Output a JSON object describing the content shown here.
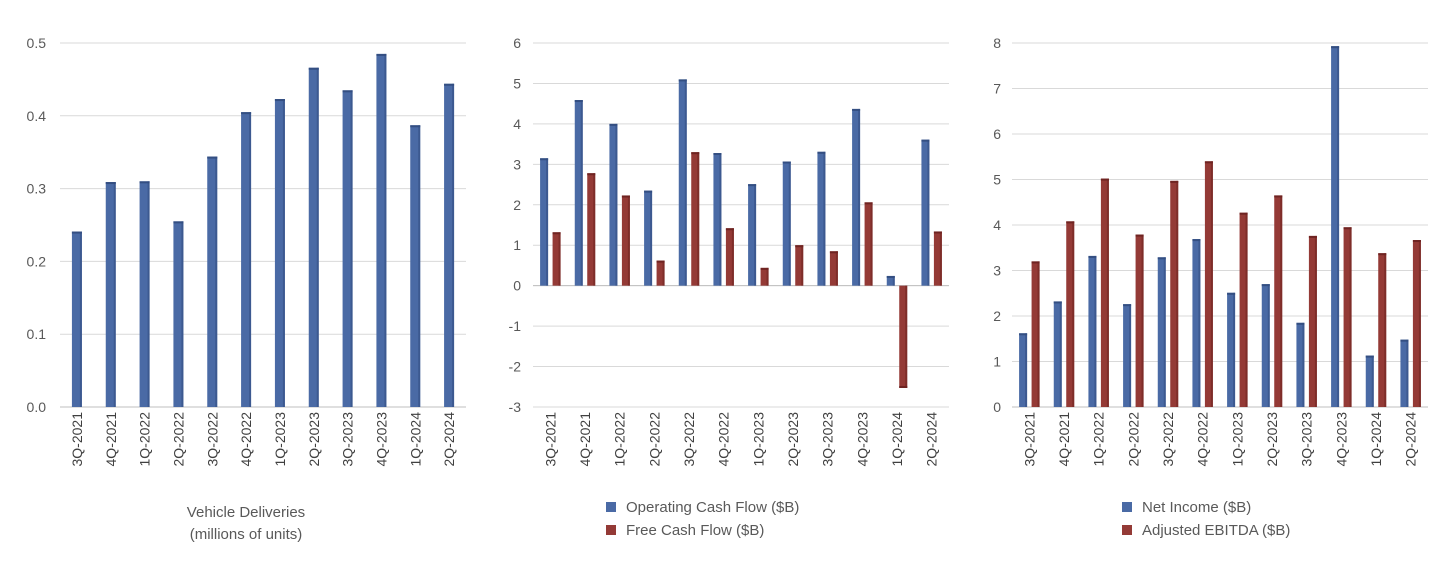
{
  "colors": {
    "blue": "#4a6aa5",
    "blue_dark": "#344f82",
    "red": "#943a36",
    "red_dark": "#6f2422",
    "grid": "#d9d9d9",
    "text": "#595959"
  },
  "chart_data": [
    {
      "type": "bar",
      "categories": [
        "3Q-2021",
        "4Q-2021",
        "1Q-2022",
        "2Q-2022",
        "3Q-2022",
        "4Q-2022",
        "1Q-2023",
        "2Q-2023",
        "3Q-2023",
        "4Q-2023",
        "1Q-2024",
        "2Q-2024"
      ],
      "series": [
        {
          "name": "Vehicle Deliveries",
          "color": "#4a6aa5",
          "values": [
            0.241,
            0.309,
            0.31,
            0.255,
            0.344,
            0.405,
            0.423,
            0.466,
            0.435,
            0.485,
            0.387,
            0.444
          ]
        }
      ],
      "ylim": [
        0,
        0.5
      ],
      "yticks": [
        "0.0",
        "0.1",
        "0.2",
        "0.3",
        "0.4",
        "0.5"
      ],
      "ytick_values": [
        0,
        0.1,
        0.2,
        0.3,
        0.4,
        0.5
      ],
      "legend_text": [
        "Vehicle Deliveries",
        "(millions of units)"
      ],
      "grid": true
    },
    {
      "type": "bar",
      "categories": [
        "3Q-2021",
        "4Q-2021",
        "1Q-2022",
        "2Q-2022",
        "3Q-2022",
        "4Q-2022",
        "1Q-2023",
        "2Q-2023",
        "3Q-2023",
        "4Q-2023",
        "1Q-2024",
        "2Q-2024"
      ],
      "series": [
        {
          "name": "Operating Cash Flow ($B)",
          "color": "#4a6aa5",
          "values": [
            3.15,
            4.59,
            4.0,
            2.35,
            5.1,
            3.28,
            2.51,
            3.07,
            3.31,
            4.37,
            0.24,
            3.61
          ]
        },
        {
          "name": "Free Cash Flow ($B)",
          "color": "#943a36",
          "values": [
            1.32,
            2.78,
            2.23,
            0.62,
            3.3,
            1.42,
            0.44,
            1.0,
            0.85,
            2.06,
            -2.53,
            1.34
          ]
        }
      ],
      "ylim": [
        -3,
        6
      ],
      "yticks": [
        "-3",
        "-2",
        "-1",
        "0",
        "1",
        "2",
        "3",
        "4",
        "5",
        "6"
      ],
      "ytick_values": [
        -3,
        -2,
        -1,
        0,
        1,
        2,
        3,
        4,
        5,
        6
      ],
      "legend_position": "bottom",
      "grid": true
    },
    {
      "type": "bar",
      "categories": [
        "3Q-2021",
        "4Q-2021",
        "1Q-2022",
        "2Q-2022",
        "3Q-2022",
        "4Q-2022",
        "1Q-2023",
        "2Q-2023",
        "3Q-2023",
        "4Q-2023",
        "1Q-2024",
        "2Q-2024"
      ],
      "series": [
        {
          "name": "Net Income ($B)",
          "color": "#4a6aa5",
          "values": [
            1.62,
            2.32,
            3.32,
            2.26,
            3.29,
            3.69,
            2.51,
            2.7,
            1.85,
            7.93,
            1.13,
            1.48
          ]
        },
        {
          "name": "Adjusted EBITDA ($B)",
          "color": "#943a36",
          "values": [
            3.2,
            4.08,
            5.02,
            3.79,
            4.97,
            5.4,
            4.27,
            4.65,
            3.76,
            3.95,
            3.38,
            3.67
          ]
        }
      ],
      "ylim": [
        0,
        8
      ],
      "yticks": [
        "0",
        "1",
        "2",
        "3",
        "4",
        "5",
        "6",
        "7",
        "8"
      ],
      "ytick_values": [
        0,
        1,
        2,
        3,
        4,
        5,
        6,
        7,
        8
      ],
      "legend_position": "bottom",
      "grid": true
    }
  ]
}
